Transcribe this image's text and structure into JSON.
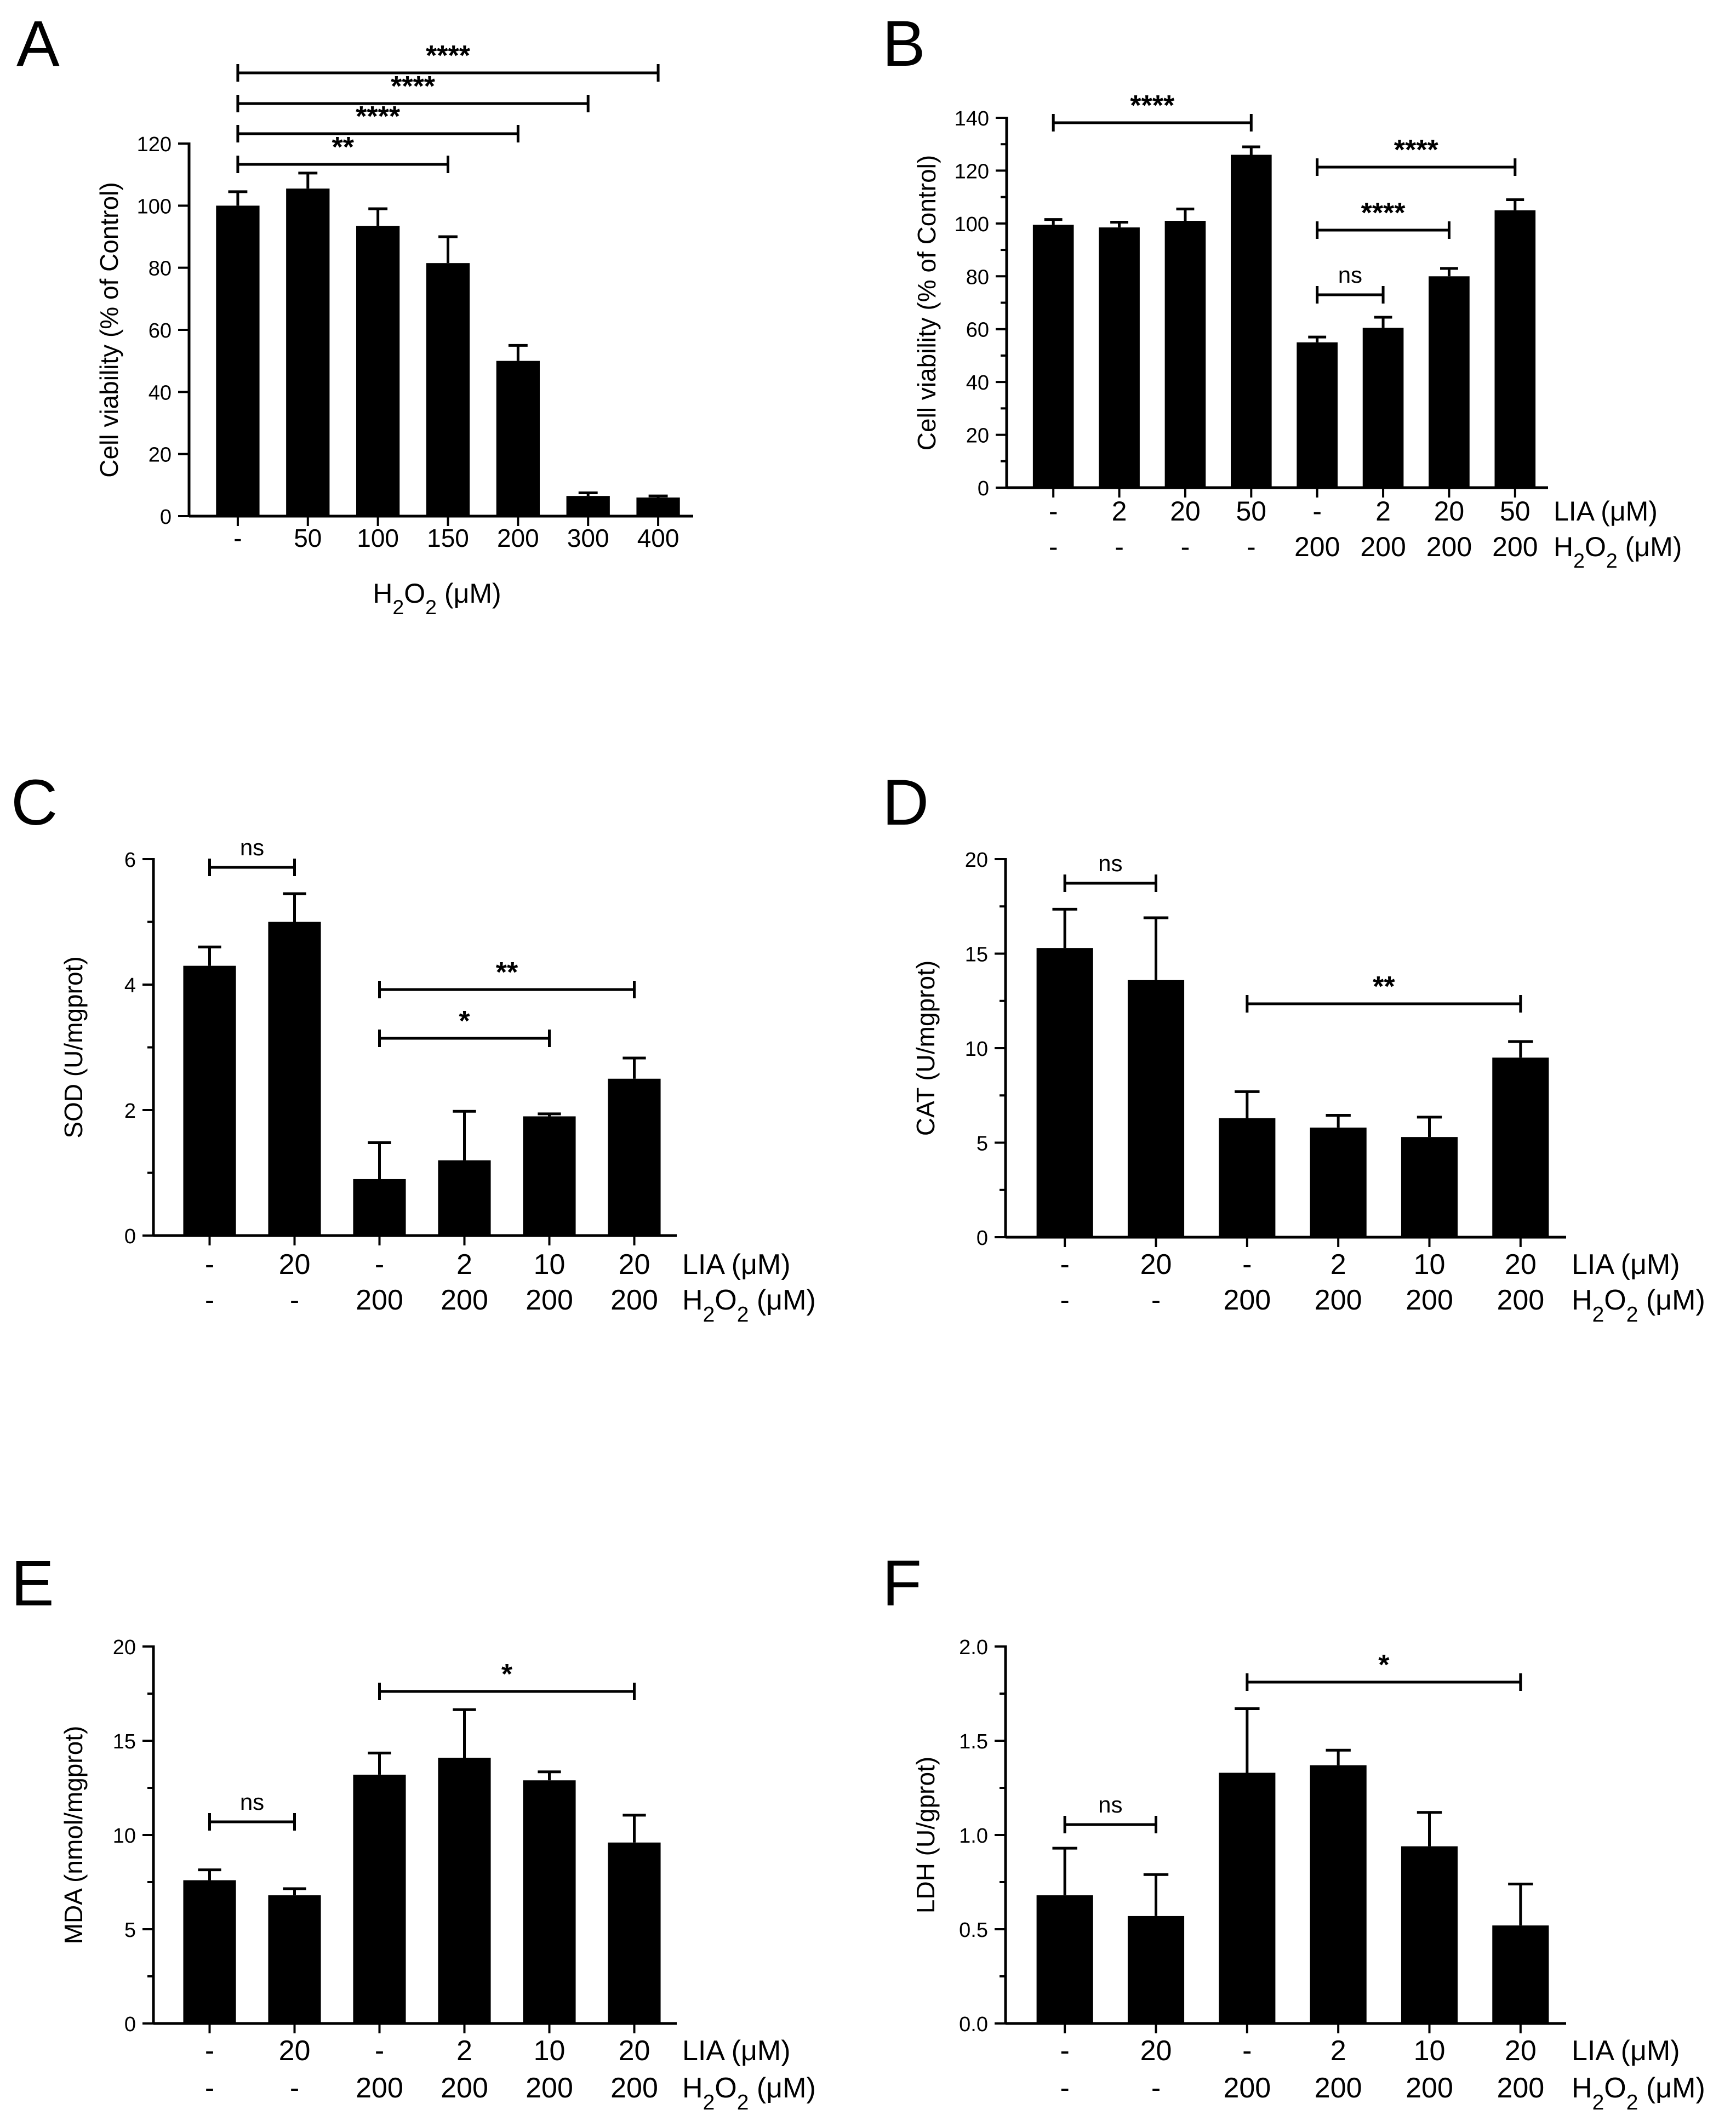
{
  "colors": {
    "bar": "#000000",
    "background": "#ffffff"
  },
  "chart_data": [
    {
      "id": "A",
      "panel_label": "A",
      "type": "bar",
      "ylabel": "Cell viability (% of Control)",
      "xlabel": "H₂O₂ (μM)",
      "ylim": [
        0,
        120
      ],
      "yticks": [
        "0",
        "20",
        "40",
        "60",
        "80",
        "100",
        "120"
      ],
      "minor_ticks": false,
      "rows": [
        {
          "name": "",
          "values": [
            "-",
            "50",
            "100",
            "150",
            "200",
            "300",
            "400"
          ]
        }
      ],
      "values": [
        100,
        105.5,
        93.5,
        81.5,
        50,
        6.5,
        6
      ],
      "errors": [
        4.5,
        5,
        5.5,
        8.5,
        5,
        1,
        0.5
      ],
      "significance": [
        {
          "from": 0,
          "to": 3,
          "label": "**"
        },
        {
          "from": 0,
          "to": 4,
          "label": "****"
        },
        {
          "from": 0,
          "to": 5,
          "label": "****"
        },
        {
          "from": 0,
          "to": 6,
          "label": "****"
        }
      ]
    },
    {
      "id": "B",
      "panel_label": "B",
      "type": "bar",
      "ylabel": "Cell viability (% of Control)",
      "ylim": [
        0,
        140
      ],
      "yticks": [
        "0",
        "20",
        "40",
        "60",
        "80",
        "100",
        "120",
        "140"
      ],
      "minor_ticks": true,
      "rows": [
        {
          "name": "LIA (μM)",
          "values": [
            "-",
            "2",
            "20",
            "50",
            "-",
            "2",
            "20",
            "50"
          ]
        },
        {
          "name": "H₂O₂ (μM)",
          "values": [
            "-",
            "-",
            "-",
            "-",
            "200",
            "200",
            "200",
            "200"
          ]
        }
      ],
      "values": [
        99.5,
        98.5,
        101,
        126,
        55,
        60.5,
        80,
        105
      ],
      "errors": [
        2,
        2,
        4.5,
        3,
        2,
        4,
        3,
        4
      ],
      "significance": [
        {
          "from": 0,
          "to": 3,
          "label": "****"
        },
        {
          "from": 4,
          "to": 5,
          "label": "ns"
        },
        {
          "from": 4,
          "to": 6,
          "label": "****"
        },
        {
          "from": 4,
          "to": 7,
          "label": "****"
        }
      ]
    },
    {
      "id": "C",
      "panel_label": "C",
      "type": "bar",
      "ylabel": "SOD (U/mgprot)",
      "ylim": [
        0,
        6
      ],
      "yticks": [
        "0",
        "2",
        "4",
        "6"
      ],
      "minor_ticks": true,
      "rows": [
        {
          "name": "LIA (μM)",
          "values": [
            "-",
            "20",
            "-",
            "2",
            "10",
            "20"
          ]
        },
        {
          "name": "H₂O₂ (μM)",
          "values": [
            "-",
            "-",
            "200",
            "200",
            "200",
            "200"
          ]
        }
      ],
      "values": [
        4.3,
        5.0,
        0.9,
        1.2,
        1.9,
        2.5
      ],
      "errors": [
        0.3,
        0.45,
        0.58,
        0.78,
        0.04,
        0.33
      ],
      "significance": [
        {
          "from": 0,
          "to": 1,
          "label": "ns"
        },
        {
          "from": 2,
          "to": 4,
          "label": "*"
        },
        {
          "from": 2,
          "to": 5,
          "label": "**"
        }
      ]
    },
    {
      "id": "D",
      "panel_label": "D",
      "type": "bar",
      "ylabel": "CAT (U/mgprot)",
      "ylim": [
        0,
        20
      ],
      "yticks": [
        "0",
        "5",
        "10",
        "15",
        "20"
      ],
      "minor_ticks": true,
      "rows": [
        {
          "name": "LIA (μM)",
          "values": [
            "-",
            "20",
            "-",
            "2",
            "10",
            "20"
          ]
        },
        {
          "name": "H₂O₂ (μM)",
          "values": [
            "-",
            "-",
            "200",
            "200",
            "200",
            "200"
          ]
        }
      ],
      "values": [
        15.3,
        13.6,
        6.3,
        5.8,
        5.3,
        9.5
      ],
      "errors": [
        2.05,
        3.3,
        1.4,
        0.65,
        1.05,
        0.85
      ],
      "significance": [
        {
          "from": 0,
          "to": 1,
          "label": "ns"
        },
        {
          "from": 2,
          "to": 5,
          "label": "**"
        }
      ]
    },
    {
      "id": "E",
      "panel_label": "E",
      "type": "bar",
      "ylabel": "MDA (nmol/mgprot)",
      "ylim": [
        0,
        20
      ],
      "yticks": [
        "0",
        "5",
        "10",
        "15",
        "20"
      ],
      "minor_ticks": true,
      "rows": [
        {
          "name": "LIA (μM)",
          "values": [
            "-",
            "20",
            "-",
            "2",
            "10",
            "20"
          ]
        },
        {
          "name": "H₂O₂ (μM)",
          "values": [
            "-",
            "-",
            "200",
            "200",
            "200",
            "200"
          ]
        }
      ],
      "values": [
        7.6,
        6.8,
        13.2,
        14.1,
        12.9,
        9.6
      ],
      "errors": [
        0.55,
        0.35,
        1.15,
        2.55,
        0.45,
        1.45
      ],
      "significance": [
        {
          "from": 0,
          "to": 1,
          "label": "ns"
        },
        {
          "from": 2,
          "to": 5,
          "label": "*"
        }
      ]
    },
    {
      "id": "F",
      "panel_label": "F",
      "type": "bar",
      "ylabel": "LDH (U/gprot)",
      "ylim": [
        0,
        2.0
      ],
      "yticks": [
        "0.0",
        "0.5",
        "1.0",
        "1.5",
        "2.0"
      ],
      "minor_ticks": true,
      "rows": [
        {
          "name": "LIA (μM)",
          "values": [
            "-",
            "20",
            "-",
            "2",
            "10",
            "20"
          ]
        },
        {
          "name": "H₂O₂ (μM)",
          "values": [
            "-",
            "-",
            "200",
            "200",
            "200",
            "200"
          ]
        }
      ],
      "values": [
        0.68,
        0.57,
        1.33,
        1.37,
        0.94,
        0.52
      ],
      "errors": [
        0.25,
        0.22,
        0.34,
        0.08,
        0.18,
        0.22
      ],
      "significance": [
        {
          "from": 0,
          "to": 1,
          "label": "ns"
        },
        {
          "from": 2,
          "to": 5,
          "label": "*"
        }
      ]
    }
  ]
}
